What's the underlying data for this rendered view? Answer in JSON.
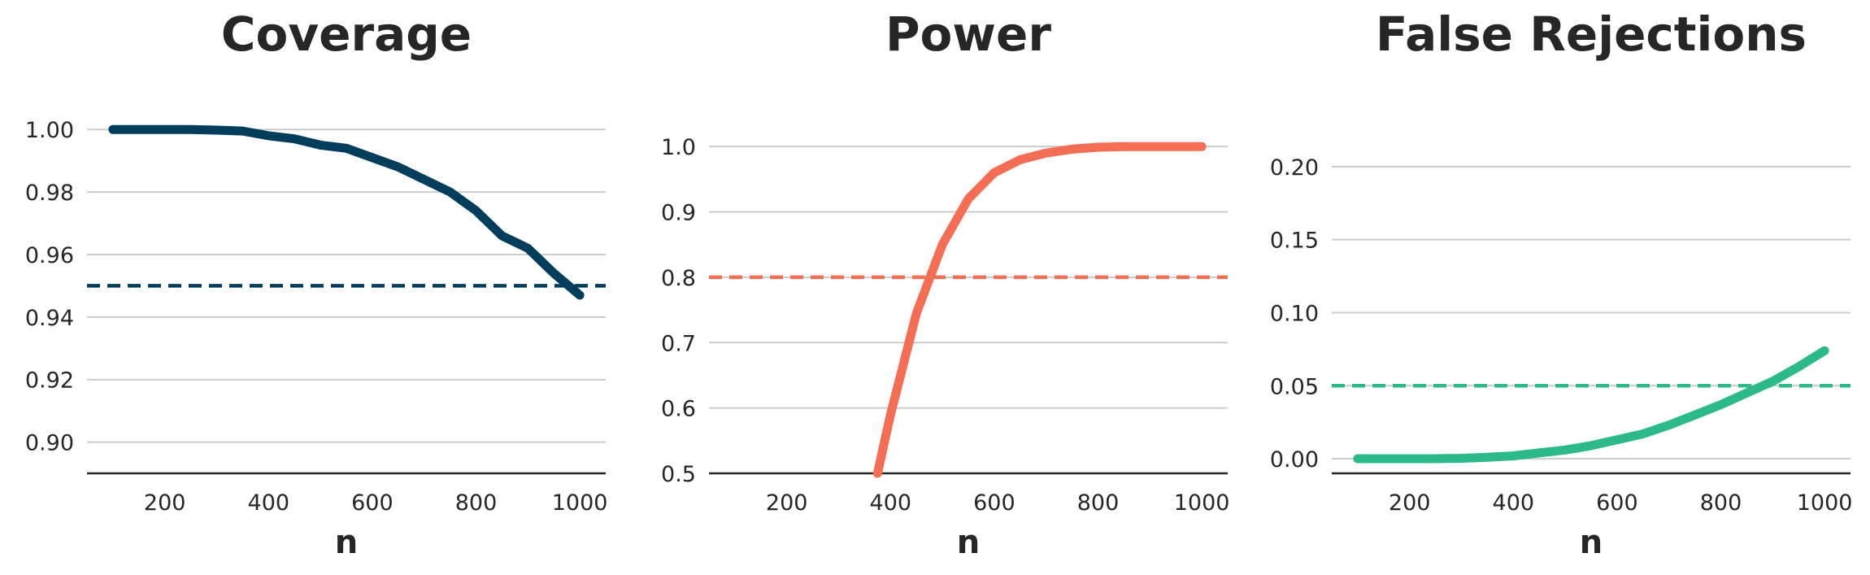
{
  "chart_data": [
    {
      "type": "line",
      "title": "Coverage",
      "xlabel": "n",
      "ylabel": "",
      "color": "#023e5c",
      "xlim": [
        50,
        1050
      ],
      "ylim": [
        0.89,
        1.005
      ],
      "xticks": [
        200,
        400,
        600,
        800,
        1000
      ],
      "xtick_labels": [
        "200",
        "400",
        "600",
        "800",
        "1000"
      ],
      "yticks": [
        0.9,
        0.92,
        0.94,
        0.96,
        0.98,
        1.0
      ],
      "ytick_labels": [
        "0.90",
        "0.92",
        "0.94",
        "0.96",
        "0.98",
        "1.00"
      ],
      "grid": true,
      "reference_line": 0.95,
      "x": [
        100,
        150,
        200,
        250,
        300,
        350,
        400,
        450,
        500,
        550,
        600,
        650,
        700,
        750,
        800,
        850,
        900,
        950,
        1000
      ],
      "y": [
        1.0,
        1.0,
        1.0,
        1.0,
        0.9998,
        0.9995,
        0.998,
        0.997,
        0.995,
        0.994,
        0.991,
        0.988,
        0.984,
        0.98,
        0.974,
        0.966,
        0.962,
        0.954,
        0.947
      ]
    },
    {
      "type": "line",
      "title": "Power",
      "xlabel": "n",
      "ylabel": "",
      "color": "#f46d55",
      "xlim": [
        50,
        1050
      ],
      "ylim": [
        0.5,
        1.05
      ],
      "xticks": [
        200,
        400,
        600,
        800,
        1000
      ],
      "xtick_labels": [
        "200",
        "400",
        "600",
        "800",
        "1000"
      ],
      "yticks": [
        0.5,
        0.6,
        0.7,
        0.8,
        0.9,
        1.0
      ],
      "ytick_labels": [
        "0.5",
        "0.6",
        "0.7",
        "0.8",
        "0.9",
        "1.0"
      ],
      "grid": true,
      "reference_line": 0.8,
      "x": [
        375,
        400,
        450,
        500,
        550,
        600,
        650,
        700,
        750,
        800,
        850,
        900,
        950,
        1000
      ],
      "y": [
        0.5,
        0.59,
        0.745,
        0.85,
        0.92,
        0.96,
        0.98,
        0.99,
        0.996,
        0.999,
        1.0,
        1.0,
        1.0,
        1.0
      ]
    },
    {
      "type": "line",
      "title": "False Rejections",
      "xlabel": "n",
      "ylabel": "",
      "color": "#2dba8a",
      "xlim": [
        50,
        1050
      ],
      "ylim": [
        -0.01,
        0.225
      ],
      "xticks": [
        200,
        400,
        600,
        800,
        1000
      ],
      "xtick_labels": [
        "200",
        "400",
        "600",
        "800",
        "1000"
      ],
      "yticks": [
        0.0,
        0.05,
        0.1,
        0.15,
        0.2
      ],
      "ytick_labels": [
        "0.00",
        "0.05",
        "0.10",
        "0.15",
        "0.20"
      ],
      "grid": true,
      "reference_line": 0.05,
      "x": [
        100,
        150,
        200,
        250,
        300,
        350,
        400,
        450,
        500,
        550,
        600,
        650,
        700,
        750,
        800,
        850,
        900,
        950,
        1000
      ],
      "y": [
        0.0,
        0.0,
        0.0,
        0.0,
        0.0003,
        0.001,
        0.002,
        0.004,
        0.006,
        0.009,
        0.013,
        0.017,
        0.023,
        0.03,
        0.037,
        0.045,
        0.053,
        0.063,
        0.074
      ]
    }
  ]
}
